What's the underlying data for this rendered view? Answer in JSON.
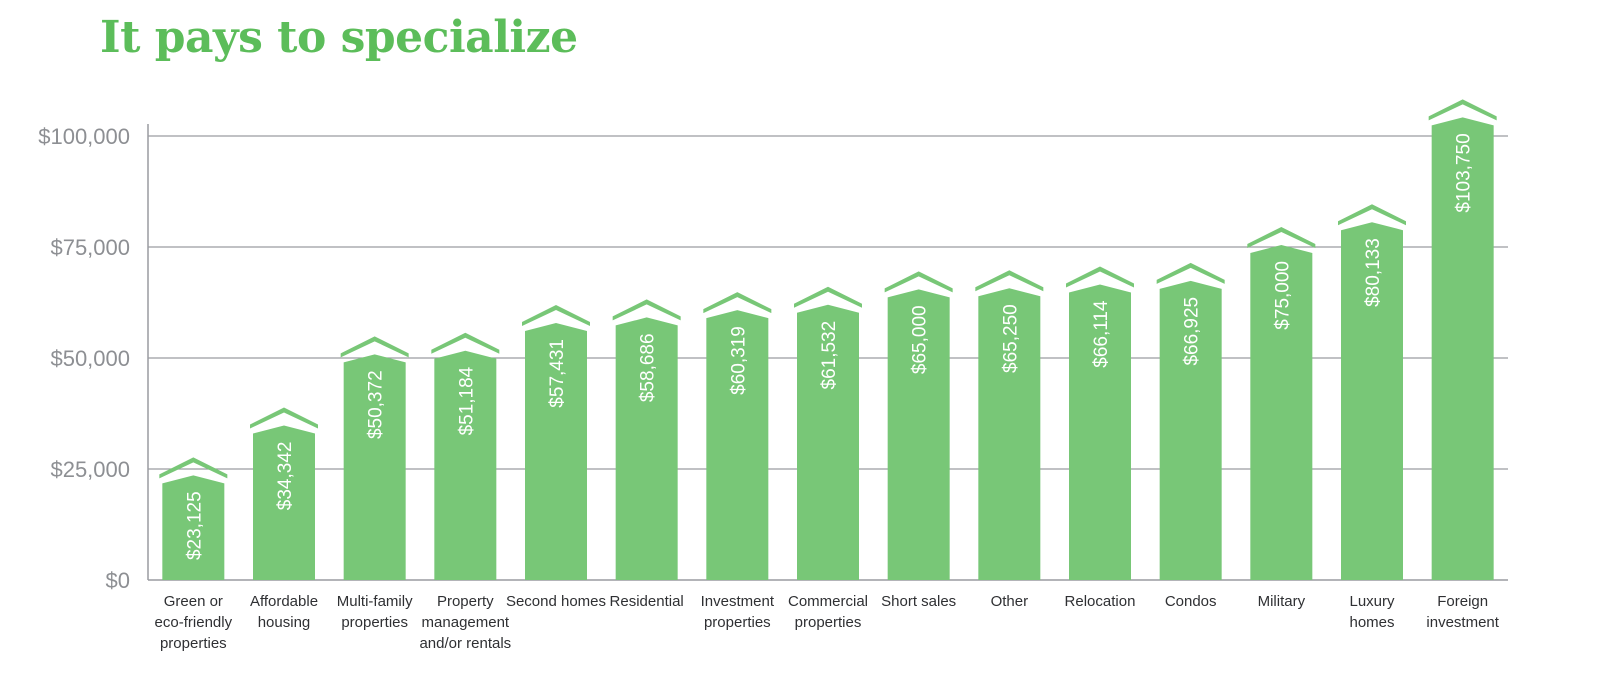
{
  "colors": {
    "bar": "#78c777",
    "title": "#5cbd5a",
    "grid": "#9a9ca1",
    "tick": "#8d8f93",
    "category": "#2f3033",
    "value_label": "#ffffff"
  },
  "chart_data": {
    "type": "bar",
    "title": "It pays to specialize",
    "xlabel": "",
    "ylabel": "",
    "ylim": [
      0,
      100000
    ],
    "yticks": [
      {
        "value": 0,
        "label": "$0"
      },
      {
        "value": 25000,
        "label": "$25,000"
      },
      {
        "value": 50000,
        "label": "$50,000"
      },
      {
        "value": 75000,
        "label": "$75,000"
      },
      {
        "value": 100000,
        "label": "$100,000"
      }
    ],
    "grid": true,
    "categories": [
      [
        "Green or",
        "eco-friendly",
        "properties"
      ],
      [
        "Affordable",
        "housing"
      ],
      [
        "Multi-family",
        "properties"
      ],
      [
        "Property",
        "management",
        "and/or rentals"
      ],
      [
        "Second homes"
      ],
      [
        "Residential"
      ],
      [
        "Investment",
        "properties"
      ],
      [
        "Commercial",
        "properties"
      ],
      [
        "Short sales"
      ],
      [
        "Other"
      ],
      [
        "Relocation"
      ],
      [
        "Condos"
      ],
      [
        "Military"
      ],
      [
        "Luxury",
        "homes"
      ],
      [
        "Foreign",
        "investment"
      ]
    ],
    "values": [
      23125,
      34342,
      50372,
      51184,
      57431,
      58686,
      60319,
      61532,
      65000,
      65250,
      66114,
      66925,
      75000,
      80133,
      103750
    ],
    "value_labels": [
      "$23,125",
      "$34,342",
      "$50,372",
      "$51,184",
      "$57,431",
      "$58,686",
      "$60,319",
      "$61,532",
      "$65,000",
      "$65,250",
      "$66,114",
      "$66,925",
      "$75,000",
      "$80,133",
      "$103,750"
    ]
  }
}
